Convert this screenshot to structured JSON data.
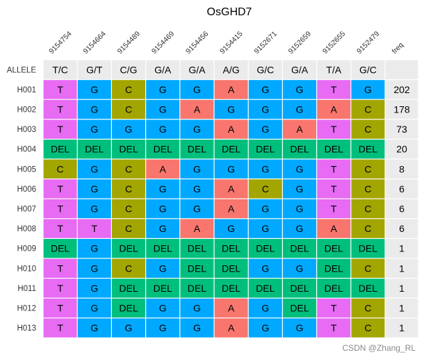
{
  "chart_data": {
    "type": "table",
    "title": "OsGHD7",
    "row_header_label": "ALLELE",
    "freq_label": "freq",
    "positions": [
      "9154754",
      "9154664",
      "9154489",
      "9154469",
      "9154456",
      "9154415",
      "9152671",
      "9152659",
      "9152655",
      "9152479"
    ],
    "alleles": [
      "T/C",
      "G/T",
      "C/G",
      "G/A",
      "G/A",
      "A/G",
      "G/C",
      "G/A",
      "T/A",
      "G/C"
    ],
    "rows": [
      {
        "id": "H001",
        "calls": [
          "T",
          "G",
          "C",
          "G",
          "G",
          "A",
          "G",
          "G",
          "T",
          "G"
        ],
        "freq": 202
      },
      {
        "id": "H002",
        "calls": [
          "T",
          "G",
          "C",
          "G",
          "A",
          "G",
          "G",
          "G",
          "A",
          "C"
        ],
        "freq": 178
      },
      {
        "id": "H003",
        "calls": [
          "T",
          "G",
          "G",
          "G",
          "G",
          "A",
          "G",
          "A",
          "T",
          "C"
        ],
        "freq": 73
      },
      {
        "id": "H004",
        "calls": [
          "DEL",
          "DEL",
          "DEL",
          "DEL",
          "DEL",
          "DEL",
          "DEL",
          "DEL",
          "DEL",
          "DEL"
        ],
        "freq": 20
      },
      {
        "id": "H005",
        "calls": [
          "C",
          "G",
          "C",
          "A",
          "G",
          "G",
          "G",
          "G",
          "T",
          "C"
        ],
        "freq": 8
      },
      {
        "id": "H006",
        "calls": [
          "T",
          "G",
          "C",
          "G",
          "G",
          "A",
          "C",
          "G",
          "T",
          "C"
        ],
        "freq": 6
      },
      {
        "id": "H007",
        "calls": [
          "T",
          "G",
          "C",
          "G",
          "G",
          "A",
          "G",
          "G",
          "T",
          "C"
        ],
        "freq": 6
      },
      {
        "id": "H008",
        "calls": [
          "T",
          "T",
          "C",
          "G",
          "A",
          "G",
          "G",
          "G",
          "A",
          "C"
        ],
        "freq": 6
      },
      {
        "id": "H009",
        "calls": [
          "DEL",
          "G",
          "DEL",
          "DEL",
          "DEL",
          "DEL",
          "DEL",
          "DEL",
          "DEL",
          "DEL"
        ],
        "freq": 1
      },
      {
        "id": "H010",
        "calls": [
          "T",
          "G",
          "C",
          "G",
          "DEL",
          "DEL",
          "G",
          "G",
          "DEL",
          "C"
        ],
        "freq": 1
      },
      {
        "id": "H011",
        "calls": [
          "T",
          "G",
          "DEL",
          "DEL",
          "DEL",
          "DEL",
          "DEL",
          "DEL",
          "DEL",
          "DEL"
        ],
        "freq": 1
      },
      {
        "id": "H012",
        "calls": [
          "T",
          "G",
          "DEL",
          "G",
          "G",
          "A",
          "G",
          "DEL",
          "T",
          "C"
        ],
        "freq": 1
      },
      {
        "id": "H013",
        "calls": [
          "T",
          "G",
          "G",
          "G",
          "G",
          "A",
          "G",
          "G",
          "T",
          "C"
        ],
        "freq": 1
      }
    ],
    "colors": {
      "T": "#E76BF3",
      "G": "#00A9FF",
      "C": "#A3A500",
      "A": "#F8766D",
      "DEL": "#00BF7D",
      "header": "#EBEBEB",
      "freq": "#EBEBEB"
    }
  },
  "watermark": "CSDN @Zhang_RL"
}
